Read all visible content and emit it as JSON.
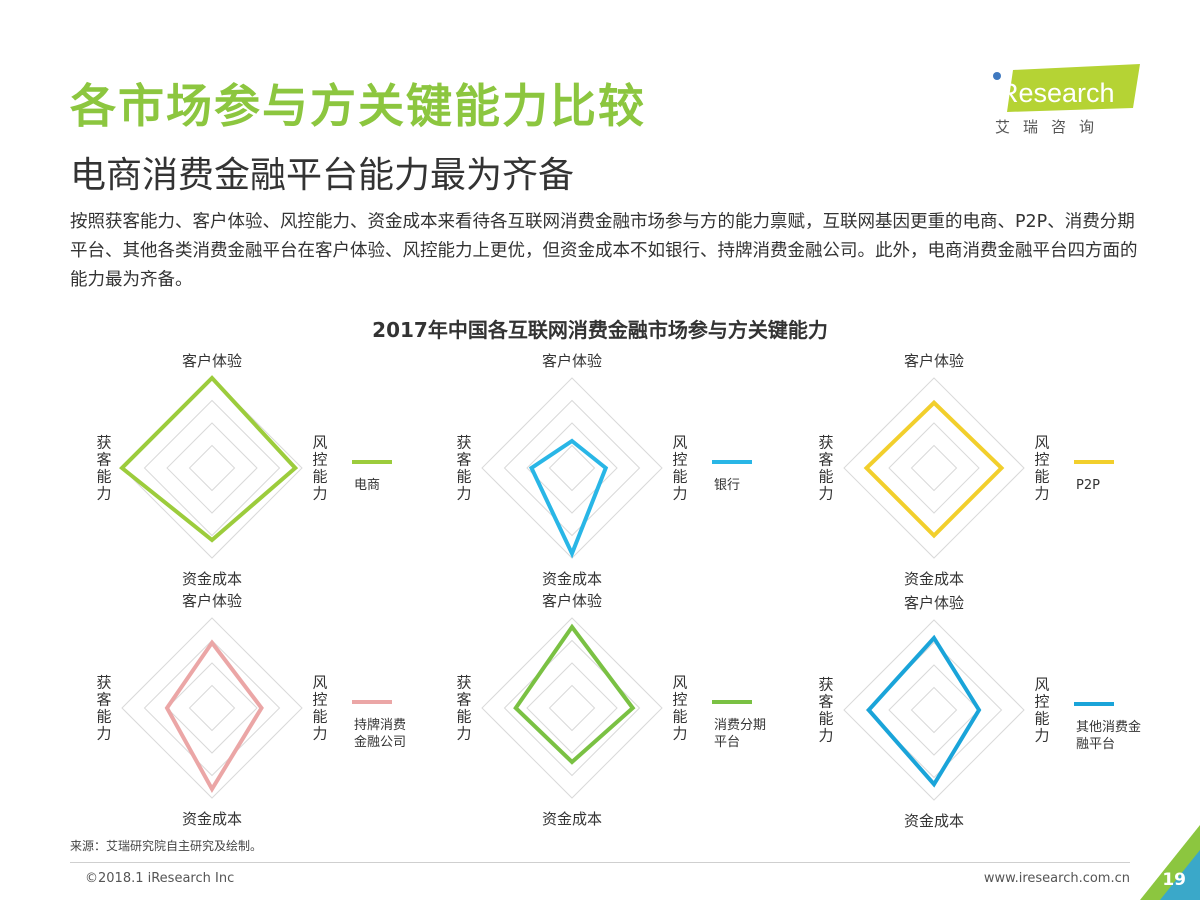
{
  "header": {
    "title": "各市场参与方关键能力比较",
    "subtitle": "电商消费金融平台能力最为齐备",
    "description": "按照获客能力、客户体验、风控能力、资金成本来看待各互联网消费金融市场参与方的能力禀赋，互联网基因更重的电商、P2P、消费分期平台、其他各类消费金融平台在客户体验、风控能力上更优，但资金成本不如银行、持牌消费金融公司。此外，电商消费金融平台四方面的能力最为齐备。"
  },
  "logo": {
    "text": "iResearch",
    "sub": "艾瑞咨询",
    "color": "#b5d334"
  },
  "chart_data": {
    "type": "radar",
    "title": "2017年中国各互联网消费金融市场参与方关键能力",
    "axes": [
      "客户体验",
      "风控能力",
      "资金成本",
      "获客能力"
    ],
    "scale_max": 4,
    "panels": [
      {
        "name": "电商",
        "color": "#9ccc3c",
        "values": [
          4.0,
          3.7,
          3.2,
          4.0
        ]
      },
      {
        "name": "银行",
        "color": "#29b6e6",
        "values": [
          1.2,
          1.5,
          3.8,
          1.8
        ]
      },
      {
        "name": "P2P",
        "color": "#f2cf2c",
        "values": [
          2.9,
          3.0,
          3.0,
          3.0
        ]
      },
      {
        "name": "持牌消费\n金融公司",
        "color": "#eba6a6",
        "values": [
          2.9,
          2.2,
          3.6,
          2.0
        ]
      },
      {
        "name": "消费分期\n平台",
        "color": "#7ac143",
        "values": [
          3.6,
          2.7,
          2.4,
          2.5
        ]
      },
      {
        "name": "其他消费金\n融平台",
        "color": "#1aa4d9",
        "values": [
          3.2,
          2.0,
          3.3,
          2.9
        ]
      }
    ]
  },
  "footer": {
    "source": "来源：艾瑞研究院自主研究及绘制。",
    "copyright": "©2018.1 iResearch Inc",
    "website": "www.iresearch.com.cn",
    "page": "19"
  }
}
